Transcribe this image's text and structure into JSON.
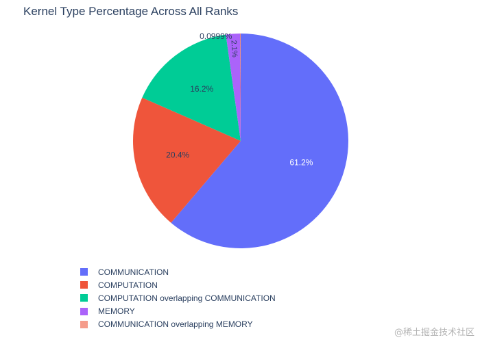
{
  "chart_data": {
    "type": "pie",
    "title": "Kernel Type Percentage Across All Ranks",
    "slices": [
      {
        "label": "COMMUNICATION",
        "value": 61.2,
        "text": "61.2%",
        "color": "#636efa"
      },
      {
        "label": "COMPUTATION",
        "value": 20.4,
        "text": "20.4%",
        "color": "#ef553b"
      },
      {
        "label": "COMPUTATION overlapping COMMUNICATION",
        "value": 16.2,
        "text": "16.2%",
        "color": "#00cc96"
      },
      {
        "label": "MEMORY",
        "value": 2.1,
        "text": "2.1%",
        "color": "#ab63fa"
      },
      {
        "label": "COMMUNICATION overlapping MEMORY",
        "value": 0.0999,
        "text": "0.0999%",
        "color": "#ef553b"
      }
    ],
    "legend_position": "bottom-left"
  },
  "watermark": "@稀土掘金技术社区"
}
